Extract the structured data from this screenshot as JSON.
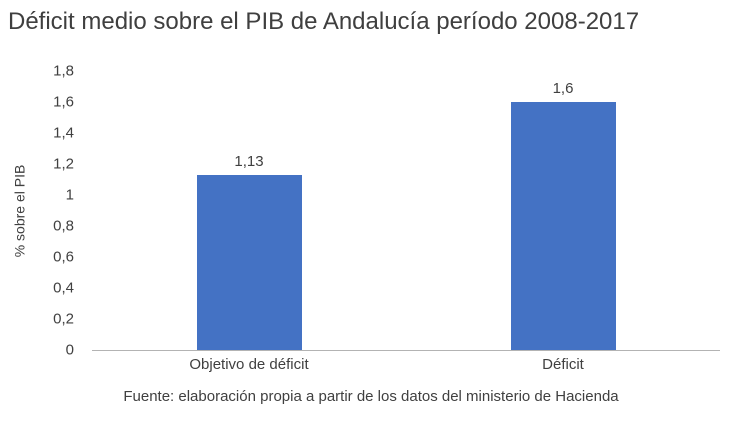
{
  "chart_data": {
    "type": "bar",
    "title": "Déficit medio sobre el PIB de Andalucía período 2008-2017",
    "ylabel": "% sobre el PIB",
    "xlabel": "",
    "categories": [
      "Objetivo de déficit",
      "Déficit"
    ],
    "values": [
      1.13,
      1.6
    ],
    "value_labels": [
      "1,13",
      "1,6"
    ],
    "ylim": [
      0,
      1.8
    ],
    "y_ticks": [
      "0",
      "0,2",
      "0,4",
      "0,6",
      "0,8",
      "1",
      "1,2",
      "1,4",
      "1,6",
      "1,8"
    ],
    "grid": false,
    "legend": "none",
    "bar_color": "#4472c4",
    "axis_line_color": "#b3b3b3",
    "caption": "Fuente: elaboración propia a partir de los datos del ministerio de Hacienda"
  }
}
